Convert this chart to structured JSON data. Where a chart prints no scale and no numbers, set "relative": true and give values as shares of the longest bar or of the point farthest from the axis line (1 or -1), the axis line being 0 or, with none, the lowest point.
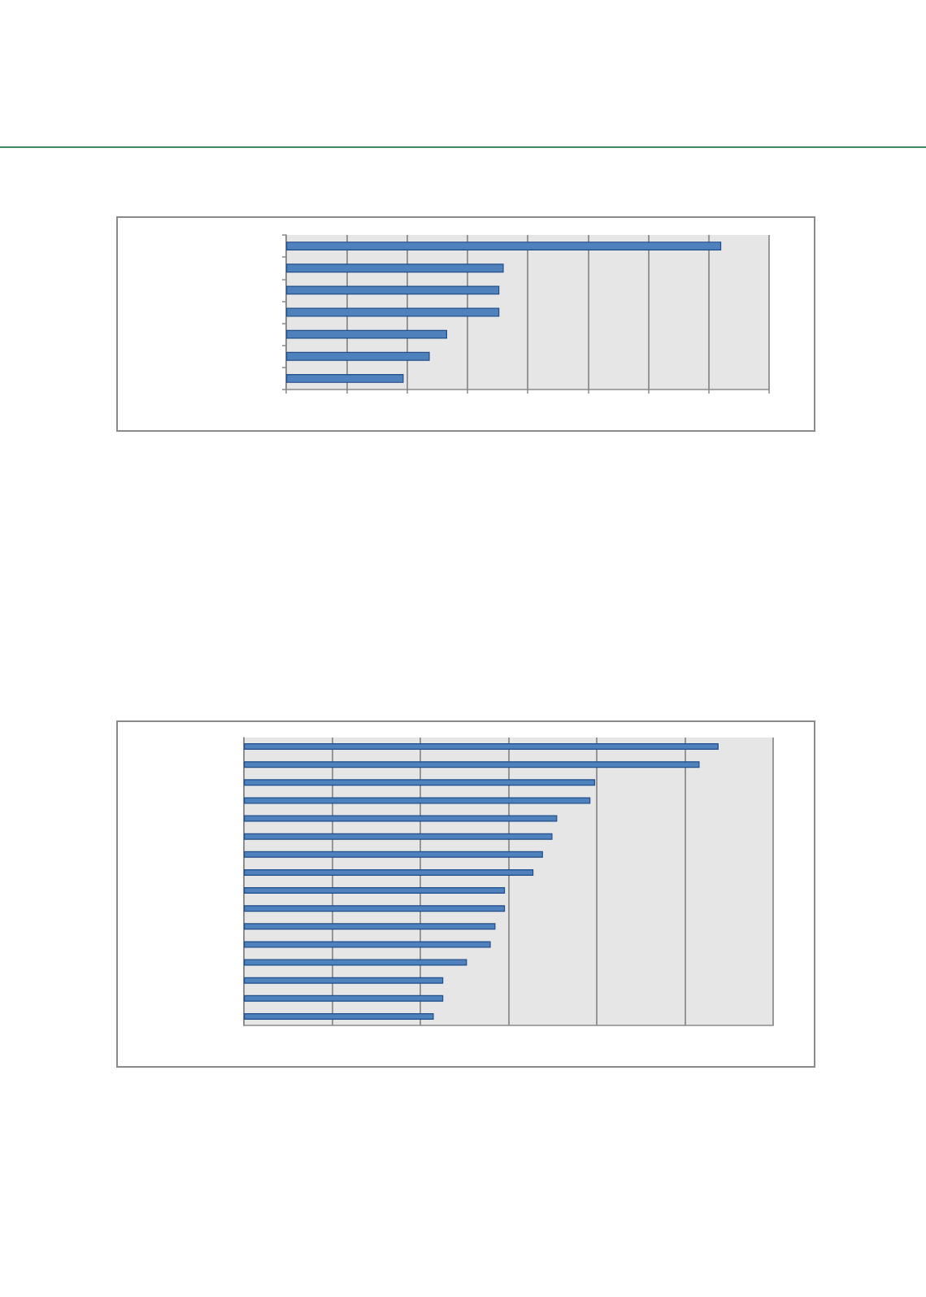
{
  "chart_data": [
    {
      "type": "bar",
      "orientation": "horizontal",
      "relative": true,
      "grid": "x",
      "color": "#4f81bd",
      "categories": [
        null,
        null,
        null,
        null,
        null,
        null,
        null
      ],
      "values": [
        1,
        0.5,
        0.49,
        0.49,
        0.37,
        0.33,
        0.27
      ]
    },
    {
      "type": "bar",
      "orientation": "horizontal",
      "relative": true,
      "grid": "x",
      "color": "#4f81bd",
      "categories": [
        null,
        null,
        null,
        null,
        null,
        null,
        null,
        null,
        null,
        null,
        null,
        null,
        null,
        null,
        null,
        null
      ],
      "values": [
        1,
        0.96,
        0.74,
        0.73,
        0.66,
        0.65,
        0.63,
        0.61,
        0.55,
        0.55,
        0.53,
        0.52,
        0.47,
        0.42,
        0.42,
        0.4
      ]
    }
  ]
}
